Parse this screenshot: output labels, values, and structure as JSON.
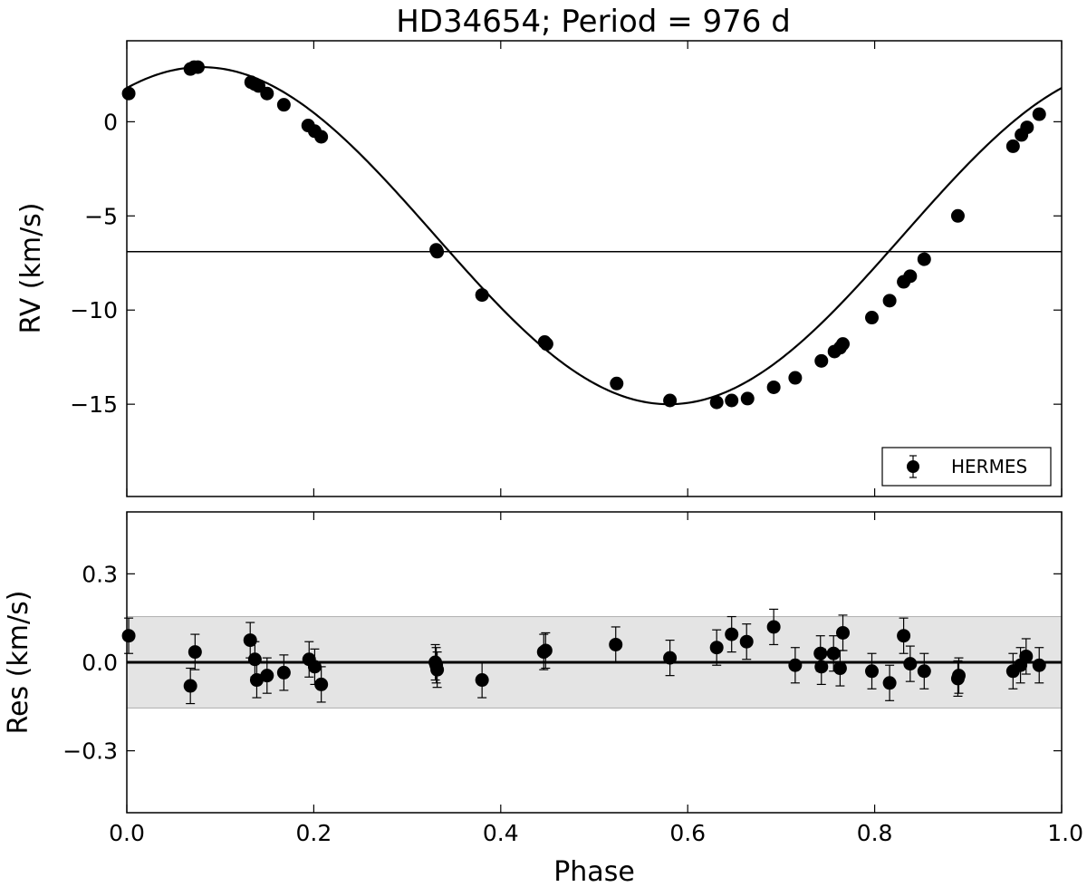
{
  "title": "HD34654; Period = 976 d",
  "chart_data": [
    {
      "type": "scatter",
      "panel": "rv",
      "ylabel": "RV (km/s)",
      "xlim": [
        0.0,
        1.0
      ],
      "ylim": [
        -19.9,
        4.3
      ],
      "yticks": [
        0,
        -5,
        -10,
        -15
      ],
      "ytick_labels": [
        "0",
        "−5",
        "−10",
        "−15"
      ],
      "x_tick_labels_shown": false,
      "gamma": -6.9,
      "model": {
        "name": "keplerian-fit",
        "semi_amplitude": 8.95,
        "offset": -6.05,
        "phase_of_max": 0.08
      },
      "legend": {
        "label": "HERMES",
        "position": "lower-right"
      },
      "series": [
        {
          "name": "HERMES",
          "x": [
            0.002,
            0.068,
            0.072,
            0.076,
            0.133,
            0.137,
            0.141,
            0.15,
            0.168,
            0.194,
            0.201,
            0.208,
            0.331,
            0.332,
            0.38,
            0.447,
            0.449,
            0.524,
            0.581,
            0.631,
            0.647,
            0.664,
            0.692,
            0.715,
            0.743,
            0.757,
            0.763,
            0.766,
            0.797,
            0.816,
            0.831,
            0.838,
            0.853,
            0.889,
            0.948,
            0.957,
            0.963,
            0.976
          ],
          "y": [
            1.5,
            2.8,
            2.9,
            2.9,
            2.1,
            2.0,
            1.9,
            1.5,
            0.9,
            -0.2,
            -0.5,
            -0.8,
            -6.8,
            -6.9,
            -9.2,
            -11.7,
            -11.8,
            -13.9,
            -14.8,
            -14.9,
            -14.8,
            -14.7,
            -14.1,
            -13.6,
            -12.7,
            -12.2,
            -12.0,
            -11.8,
            -10.4,
            -9.5,
            -8.5,
            -8.2,
            -7.3,
            -5.0,
            -1.3,
            -0.7,
            -0.3,
            0.4
          ]
        }
      ]
    },
    {
      "type": "scatter",
      "panel": "residuals",
      "xlabel": "Phase",
      "ylabel": "Res (km/s)",
      "xlim": [
        0.0,
        1.0
      ],
      "ylim": [
        -0.51,
        0.51
      ],
      "xticks": [
        0.0,
        0.2,
        0.4,
        0.6,
        0.8,
        1.0
      ],
      "xtick_labels": [
        "0.0",
        "0.2",
        "0.4",
        "0.6",
        "0.8",
        "1.0"
      ],
      "yticks": [
        0.3,
        0.0,
        -0.3
      ],
      "ytick_labels": [
        "0.3",
        "0.0",
        "−0.3"
      ],
      "rms_band": [
        -0.155,
        0.155
      ],
      "series": [
        {
          "name": "HERMES",
          "x": [
            0.002,
            0.068,
            0.073,
            0.132,
            0.137,
            0.139,
            0.15,
            0.168,
            0.195,
            0.201,
            0.208,
            0.33,
            0.331,
            0.332,
            0.38,
            0.446,
            0.448,
            0.523,
            0.581,
            0.631,
            0.647,
            0.663,
            0.692,
            0.715,
            0.742,
            0.743,
            0.756,
            0.763,
            0.766,
            0.797,
            0.816,
            0.831,
            0.838,
            0.853,
            0.889,
            0.89,
            0.948,
            0.956,
            0.962,
            0.976
          ],
          "y": [
            0.09,
            -0.08,
            0.035,
            0.075,
            0.01,
            -0.06,
            -0.045,
            -0.035,
            0.01,
            -0.015,
            -0.075,
            0.0,
            -0.01,
            -0.025,
            -0.06,
            0.035,
            0.04,
            0.06,
            0.015,
            0.05,
            0.095,
            0.07,
            0.12,
            -0.01,
            0.03,
            -0.015,
            0.03,
            -0.02,
            0.1,
            -0.03,
            -0.07,
            0.09,
            -0.005,
            -0.03,
            -0.055,
            -0.045,
            -0.03,
            -0.01,
            0.02,
            -0.01
          ],
          "yerr": 0.06
        }
      ]
    }
  ]
}
